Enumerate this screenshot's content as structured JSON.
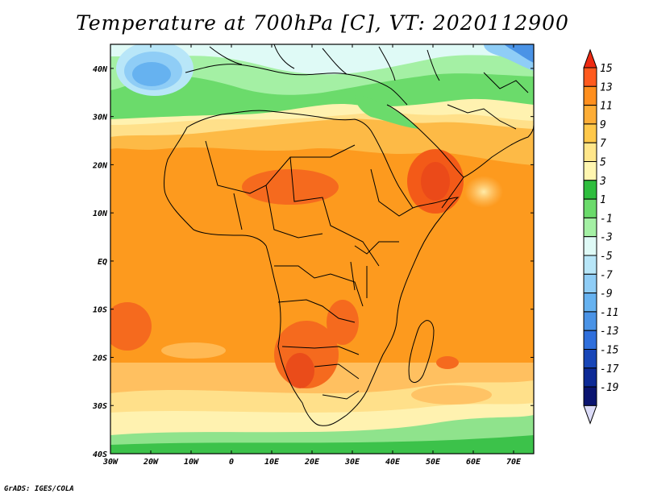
{
  "title": "Temperature at 700hPa [C], VT: 2020112900",
  "credit": "GrADS: IGES/COLA",
  "map": {
    "lon_ticks": [
      "30W",
      "20W",
      "10W",
      "0",
      "10E",
      "20E",
      "30E",
      "40E",
      "50E",
      "60E",
      "70E"
    ],
    "lat_ticks": [
      "40N",
      "30N",
      "20N",
      "10N",
      "EQ",
      "10S",
      "20S",
      "30S",
      "40S"
    ]
  },
  "colorbar": {
    "labels": [
      "15",
      "13",
      "11",
      "9",
      "7",
      "5",
      "3",
      "1",
      "-1",
      "-3",
      "-5",
      "-7",
      "-9",
      "-11",
      "-13",
      "-15",
      "-17",
      "-19"
    ],
    "colors": [
      "#ee2a12",
      "#ff5a1e",
      "#ff8f1e",
      "#fdad36",
      "#ffc84a",
      "#ffe68a",
      "#fff6b0",
      "#2fbe3e",
      "#6bdb6b",
      "#a4f0a4",
      "#dffaf6",
      "#b8e6f8",
      "#8fcdf6",
      "#66b2f0",
      "#4a93e6",
      "#2f6fdc",
      "#1846b8",
      "#0d2a96",
      "#0a1470",
      "#dcdcf8"
    ]
  }
}
